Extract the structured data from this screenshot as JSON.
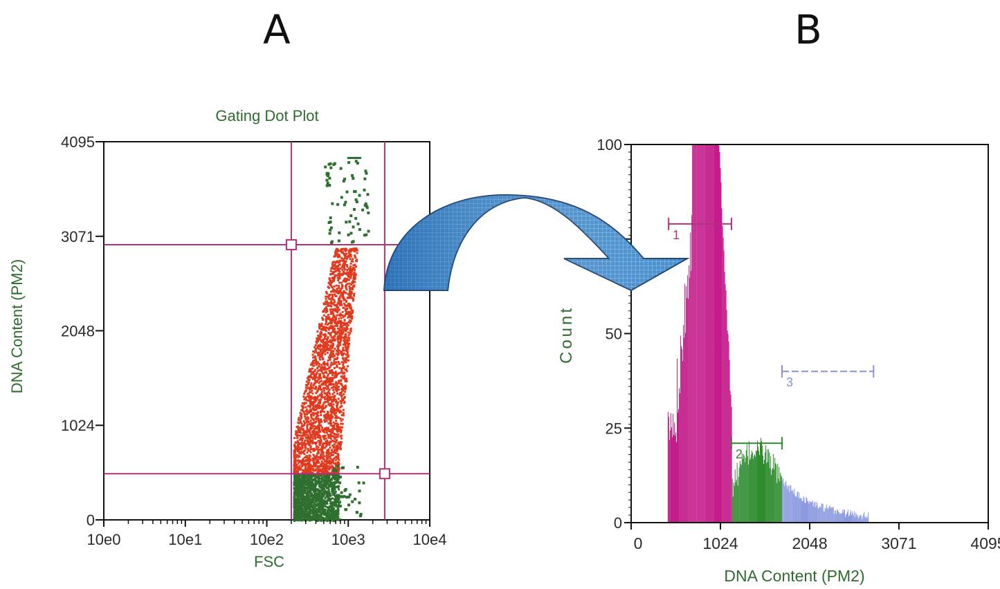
{
  "panels": {
    "a_label": "A",
    "b_label": "B"
  },
  "colors": {
    "axis_text": "#2e6b2e",
    "gate": "#b0307a",
    "red_dots": "#e03a1e",
    "green_dots": "#2f6f2f",
    "histo_magenta": "#c41c8a",
    "histo_green": "#2e8b2e",
    "histo_blue": "#8c9be0",
    "marker3": "#8890d8",
    "arrow": "#3b86c8"
  },
  "chart_data": [
    {
      "type": "scatter",
      "title": "Gating Dot Plot",
      "xlabel": "FSC",
      "ylabel": "DNA Content (PM2)",
      "x_scale": "log",
      "xlim": [
        1,
        10000
      ],
      "ylim": [
        0,
        4095
      ],
      "x_ticks": [
        "10e0",
        "10e1",
        "10e2",
        "10e3",
        "10e4"
      ],
      "y_ticks": [
        "0",
        "1024",
        "2048",
        "3071",
        "4095"
      ],
      "y_tick_values": [
        0,
        1024,
        2048,
        3071,
        4095
      ],
      "gates": {
        "vertical_lines_x": [
          200,
          2800
        ],
        "horizontal_lines_y": [
          2980,
          500
        ]
      },
      "series": [
        {
          "color": "red",
          "x_range": [
            200,
            2800
          ],
          "y_range": [
            500,
            3000
          ]
        },
        {
          "color": "green",
          "x_range": [
            200,
            2800
          ],
          "y_range": [
            0,
            500
          ]
        },
        {
          "color": "green",
          "x_range": [
            500,
            2800
          ],
          "y_range": [
            3000,
            3900
          ]
        }
      ]
    },
    {
      "type": "bar",
      "title": "",
      "xlabel": "DNA Content (PM2)",
      "ylabel": "Count",
      "xlim": [
        0,
        4095
      ],
      "ylim": [
        0,
        100
      ],
      "x_ticks": [
        "0",
        "1024",
        "2048",
        "3071",
        "4095"
      ],
      "x_tick_values": [
        0,
        1024,
        2048,
        3071,
        4095
      ],
      "y_ticks": [
        "0",
        "25",
        "50",
        "75",
        "100"
      ],
      "y_tick_values": [
        0,
        25,
        50,
        75,
        100
      ],
      "series": [
        {
          "color": "magenta",
          "x_range": [
            430,
            1150
          ],
          "peak_x": 850,
          "peak": 100
        },
        {
          "color": "green",
          "x_range": [
            1150,
            1730
          ],
          "peak": 20
        },
        {
          "color": "blue",
          "x_range": [
            1730,
            2700
          ],
          "peak": 10
        }
      ],
      "markers": [
        {
          "label": "1",
          "x_range": [
            430,
            1150
          ],
          "y": 79
        },
        {
          "label": "2",
          "x_range": [
            1150,
            1730
          ],
          "y": 21
        },
        {
          "label": "3",
          "x_range": [
            1730,
            2780
          ],
          "y": 40
        }
      ]
    }
  ]
}
